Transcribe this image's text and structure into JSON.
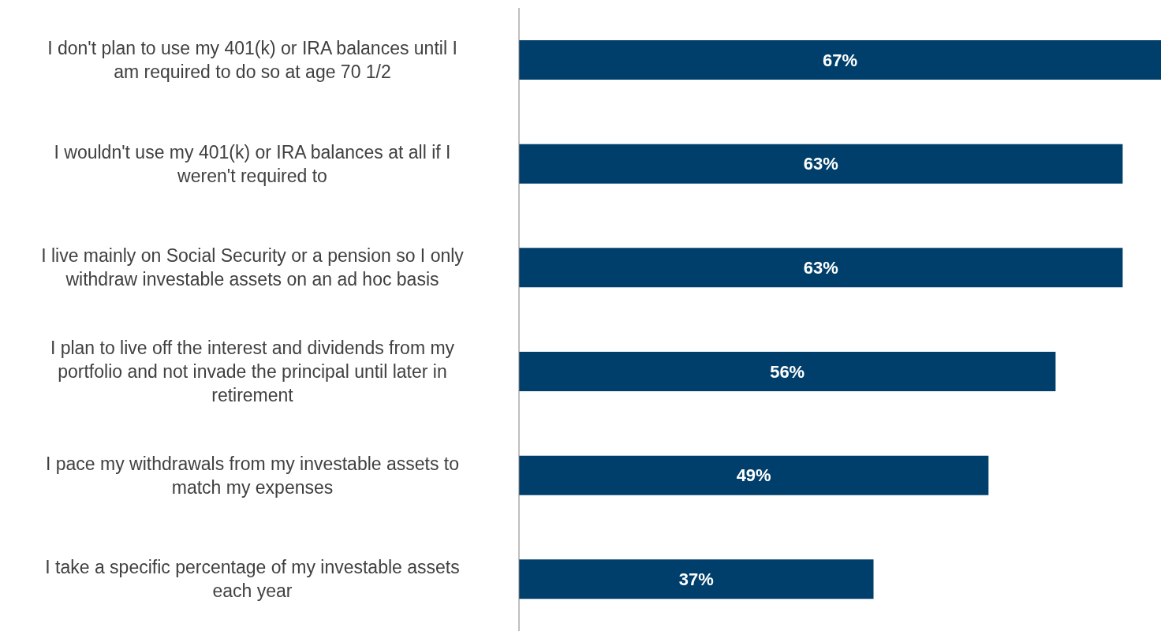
{
  "chart_data": {
    "type": "bar",
    "orientation": "horizontal",
    "categories": [
      "I don't plan to use my 401(k) or IRA balances until I am required to do so at age 70 1/2",
      "I wouldn't use my 401(k) or IRA balances at all if I weren't required to",
      "I live mainly on Social Security or a pension so I only withdraw investable assets on an ad hoc basis",
      "I plan to live off the interest and dividends from my portfolio and not invade the principal until later in retirement",
      "I pace my withdrawals from my investable assets to match my expenses",
      "I take a specific percentage of my investable assets each year"
    ],
    "values": [
      67,
      63,
      63,
      56,
      49,
      37
    ],
    "value_labels": [
      "67%",
      "63%",
      "63%",
      "56%",
      "49%",
      "37%"
    ],
    "color": "#003f6b",
    "xlim": [
      0,
      67
    ]
  }
}
